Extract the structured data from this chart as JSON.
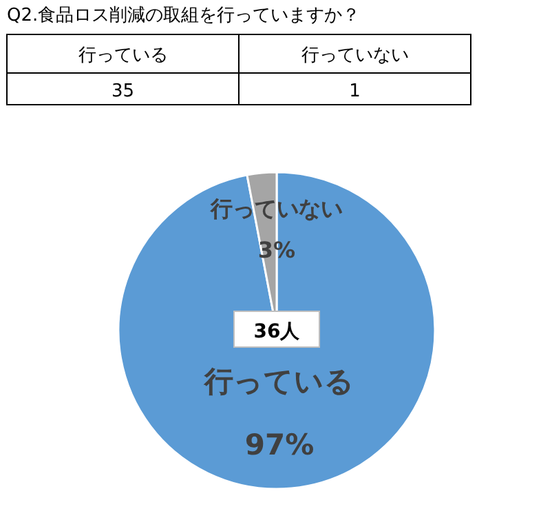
{
  "chart_data": {
    "type": "pie",
    "title": "Q2.食品ロス削減の取組を行っていますか？",
    "categories": [
      "行っている",
      "行っていない"
    ],
    "values": [
      97,
      3
    ],
    "colors": [
      "#5b9bd5",
      "#a5a5a5"
    ],
    "value_labels": [
      "97%",
      "3%"
    ],
    "annotations": [
      "35",
      "1",
      "36人"
    ]
  }
}
